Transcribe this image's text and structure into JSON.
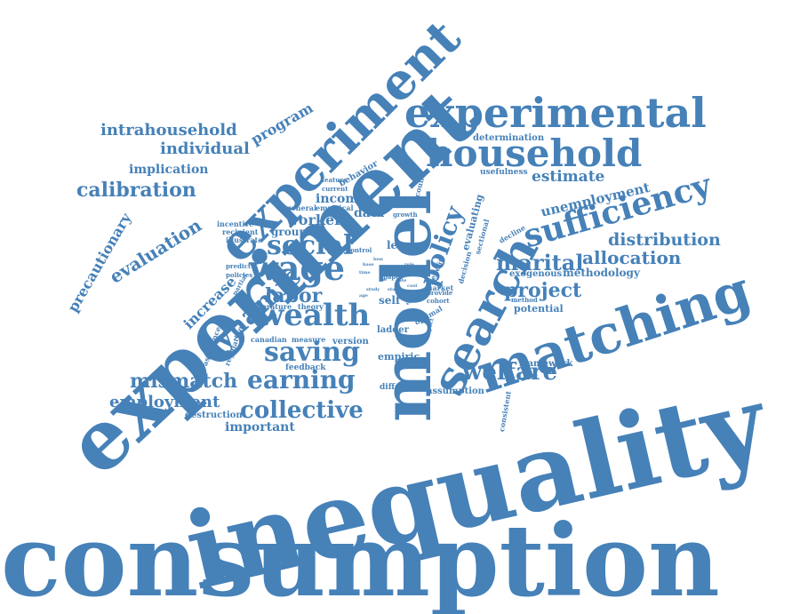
{
  "cloud": {
    "color": "#4681b8",
    "words": [
      "consumption",
      "inequality",
      "experiment",
      "model",
      "matching",
      "search",
      "experimental",
      "household",
      "sufficiency",
      "wage",
      "wealth",
      "experiment",
      "social",
      "saving",
      "earning",
      "collective",
      "policy",
      "dynamic",
      "welfare",
      "mismatch",
      "marital",
      "calibration",
      "allocation",
      "distribution",
      "project",
      "evaluation",
      "employment",
      "unemployment",
      "labor",
      "intrahousehold",
      "individual",
      "precautionary",
      "increase",
      "program",
      "estimate",
      "important",
      "worker",
      "implication",
      "income",
      "data",
      "methodology",
      "level",
      "potential",
      "framework",
      "evaluating",
      "self",
      "empiric",
      "group",
      "determination",
      "destruction",
      "usefulness",
      "assumption",
      "behavior",
      "version",
      "ladder",
      "different",
      "exogenous",
      "feedback",
      "incentive",
      "recipient",
      "illustrate",
      "canadian",
      "measure",
      "literature",
      "theory",
      "regulation",
      "assistance",
      "consistent",
      "market",
      "optimal",
      "benefit",
      "decision",
      "decline",
      "sectional",
      "account",
      "general",
      "empirical",
      "feature",
      "current",
      "control",
      "growth",
      "predict",
      "policies",
      "partial",
      "cross",
      "provide",
      "cohort",
      "method",
      "impact",
      "effect",
      "paper",
      "base",
      "study",
      "labor",
      "cost",
      "loss",
      "the",
      "age",
      "rate",
      "time",
      "role",
      "state"
    ]
  }
}
